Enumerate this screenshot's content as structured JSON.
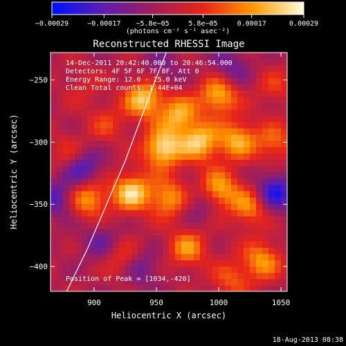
{
  "chart_data": {
    "type": "heatmap",
    "title": "Reconstructed RHESSI Image",
    "xlabel": "Heliocentric X (arcsec)",
    "ylabel": "Heliocentric Y (arcsec)",
    "xlim": [
      865,
      1055
    ],
    "ylim": [
      -420,
      -228
    ],
    "x_ticks": [
      900,
      950,
      1000,
      1050
    ],
    "y_ticks": [
      -250,
      -300,
      -350,
      -400
    ],
    "x_tick_labels": [
      "900",
      "950",
      "1000",
      "1050"
    ],
    "y_tick_labels": [
      "−250",
      "−300",
      "−350",
      "−400"
    ],
    "colorbar": {
      "range": [
        -0.00029,
        0.00029
      ],
      "ticks": [
        -0.00029,
        -0.00017,
        -5.8e-05,
        5.8e-05,
        0.00017,
        0.00029
      ],
      "tick_labels": [
        "−0.00029",
        "−0.00017",
        "−5.8e−05",
        "5.8e−05",
        "0.00017",
        "0.00029"
      ],
      "units_label": "(photons cm⁻² s⁻¹ asec⁻²)",
      "colors": [
        "#0010ff",
        "#5a1db0",
        "#a01e5a",
        "#e8241a",
        "#ff9a00",
        "#ffffe0"
      ]
    },
    "annotations": [
      "14-Dec-2011 20:42:40.000 to 20:46:54.000",
      "Detectors: 4F 5F 6F 7F 8F, Att 0",
      "Energy Range: 12.0 - 25.0 keV",
      "Clean     Total counts: 1.44E+04"
    ],
    "peak_label": "Position of Peak = [1034,-420]",
    "limb_curve": {
      "x": [
        878,
        895,
        910,
        925,
        938,
        950,
        962
      ],
      "y": [
        -420,
        -385,
        -350,
        -315,
        -280,
        -248,
        -218
      ]
    },
    "blobs": [
      {
        "x": 940,
        "y": -265,
        "v": 0.00026
      },
      {
        "x": 968,
        "y": -278,
        "v": 0.00022
      },
      {
        "x": 1000,
        "y": -262,
        "v": 0.00024
      },
      {
        "x": 955,
        "y": -305,
        "v": 0.00029
      },
      {
        "x": 985,
        "y": -300,
        "v": 0.00025
      },
      {
        "x": 1015,
        "y": -298,
        "v": 0.00022
      },
      {
        "x": 930,
        "y": -340,
        "v": 0.00027
      },
      {
        "x": 960,
        "y": -345,
        "v": 0.00021
      },
      {
        "x": 1000,
        "y": -338,
        "v": 0.00023
      },
      {
        "x": 1025,
        "y": -352,
        "v": 0.00019
      },
      {
        "x": 895,
        "y": -345,
        "v": 0.00022
      },
      {
        "x": 925,
        "y": -395,
        "v": 0.00016
      },
      {
        "x": 975,
        "y": -385,
        "v": 0.00019
      },
      {
        "x": 1035,
        "y": -395,
        "v": 0.0002
      },
      {
        "x": 1045,
        "y": -300,
        "v": 0.00015
      },
      {
        "x": 880,
        "y": -310,
        "v": 0.00012
      },
      {
        "x": 910,
        "y": -285,
        "v": 0.0001
      },
      {
        "x": 1045,
        "y": -255,
        "v": 9e-05
      },
      {
        "x": 890,
        "y": -255,
        "v": 6e-05
      },
      {
        "x": 1010,
        "y": -410,
        "v": 0.00013
      },
      {
        "x": 890,
        "y": -320,
        "v": -0.0002
      },
      {
        "x": 1045,
        "y": -340,
        "v": -0.00022
      },
      {
        "x": 1010,
        "y": -240,
        "v": -0.00012
      },
      {
        "x": 870,
        "y": -345,
        "v": -0.00015
      },
      {
        "x": 935,
        "y": -400,
        "v": -0.00016
      },
      {
        "x": 905,
        "y": -380,
        "v": -0.0001
      },
      {
        "x": 985,
        "y": -350,
        "v": -0.0001
      },
      {
        "x": 955,
        "y": -240,
        "v": -8e-05
      }
    ]
  },
  "footer_date": "18-Aug-2013 08:38"
}
